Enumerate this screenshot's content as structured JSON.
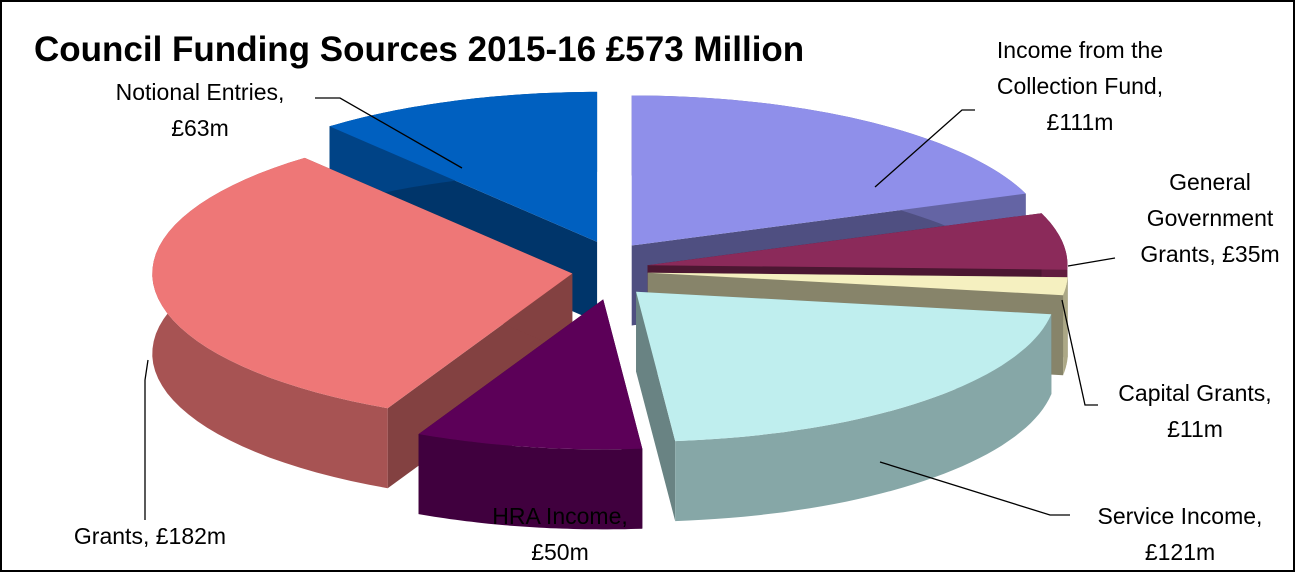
{
  "chart_data": {
    "type": "pie",
    "title": "Council Funding Sources 2015-16 £573 Million",
    "categories": [
      "Income from the Collection Fund,",
      "General Government Grants,",
      "Capital Grants,",
      "Service Income,",
      "HRA Income,",
      "Grants,",
      "Notional Entries,"
    ],
    "values": [
      111,
      35,
      11,
      121,
      50,
      182,
      63
    ],
    "value_labels": [
      "£111m",
      "£35m",
      "£11m",
      "£121m",
      "£50m",
      "£182m",
      "£63m"
    ],
    "colors": [
      "#8f8fea",
      "#8b2a5a",
      "#f5f0c0",
      "#bfeeee",
      "#5c0058",
      "#ee7777",
      "#0060c0"
    ]
  }
}
